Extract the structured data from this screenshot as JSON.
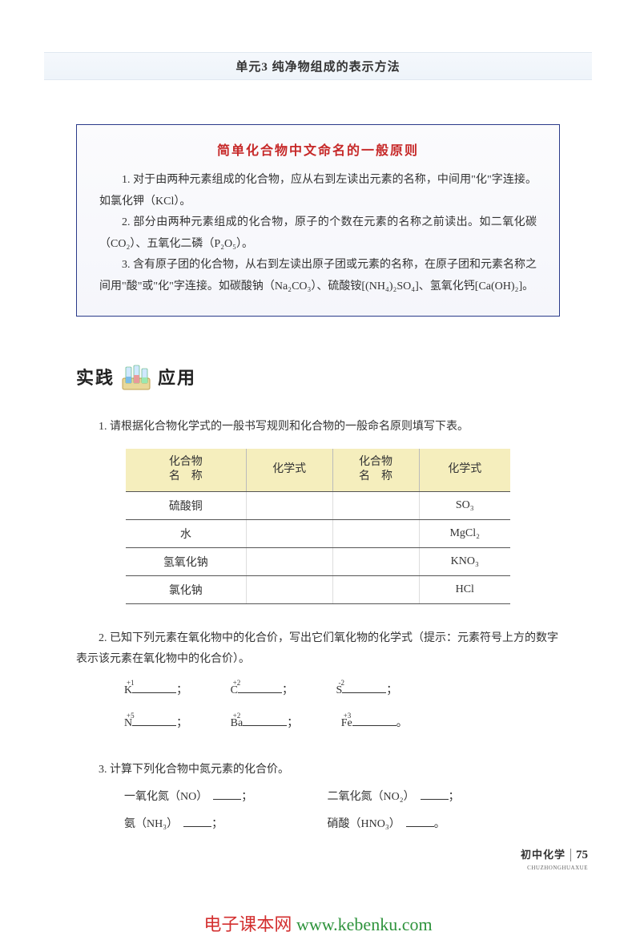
{
  "header": {
    "title": "单元3  纯净物组成的表示方法"
  },
  "ruleBox": {
    "title": "简单化合物中文命名的一般原则",
    "p1": "1. 对于由两种元素组成的化合物，应从右到左读出元素的名称，中间用\"化\"字连接。如氯化钾（KCl）。",
    "p2": "2. 部分由两种元素组成的化合物，原子的个数在元素的名称之前读出。如二氧化碳（CO₂）、五氧化二磷（P₂O₅）。",
    "p3": "3. 含有原子团的化合物，从右到左读出原子团或元素的名称，在原子团和元素名称之间用\"酸\"或\"化\"字连接。如碳酸钠（Na₂CO₃）、硫酸铵[(NH₄)₂SO₄]、氢氧化钙[Ca(OH)₂]。"
  },
  "section": {
    "left": "实践",
    "right": "应用"
  },
  "q1": {
    "text": "1. 请根据化合物化学式的一般书写规则和化合物的一般命名原则填写下表。",
    "text2": "下表。",
    "headers": [
      "化合物\n名　称",
      "化学式",
      "化合物\n名　称",
      "化学式"
    ],
    "rows": [
      [
        "硫酸铜",
        "",
        "",
        "SO₃"
      ],
      [
        "水",
        "",
        "",
        "MgCl₂"
      ],
      [
        "氢氧化钠",
        "",
        "",
        "KNO₃"
      ],
      [
        "氯化钠",
        "",
        "",
        "HCl"
      ]
    ]
  },
  "q2": {
    "text": "2. 已知下列元素在氧化物中的化合价，写出它们氧化物的化学式（提示：元素符号上方的数字表示该元素在氧化物中的化合价）。",
    "items": [
      {
        "sup": "+1",
        "sym": "K"
      },
      {
        "sup": "+2",
        "sym": "C"
      },
      {
        "sup": "-2",
        "sym": "S"
      },
      {
        "sup": "+5",
        "sym": "N"
      },
      {
        "sup": "+2",
        "sym": "Ba"
      },
      {
        "sup": "+3",
        "sym": "Fe"
      }
    ]
  },
  "q3": {
    "text": "3. 计算下列化合物中氮元素的化合价。",
    "items": [
      "一氧化氮（NO）",
      "二氧化氮（NO₂）",
      "氨（NH₃）",
      "硝酸（HNO₃）"
    ]
  },
  "footer": {
    "cn": "初中化学",
    "py": "CHUZHONGHUAXUE",
    "page": "75"
  },
  "watermark": {
    "red": "电子课本网",
    "url": " www.kebenku.com"
  },
  "colors": {
    "box_border": "#2a3a8a",
    "rule_title": "#c62828",
    "table_header_bg": "#f5eebd",
    "wm_red": "#d32f2f",
    "wm_green": "#2e933c"
  }
}
